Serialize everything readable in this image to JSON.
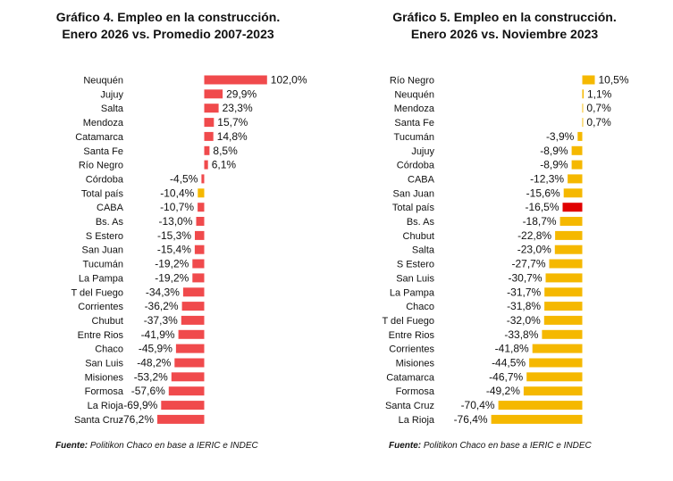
{
  "colors": {
    "red": "#F04A4C",
    "yellow": "#F5B800",
    "highlight_red": "#E00000"
  },
  "chart_data": [
    {
      "type": "bar",
      "orientation": "horizontal",
      "title_line1": "Gráfico 4. Empleo en la construcción.",
      "title_line2": "Enero 2026 vs. Promedio 2007-2023",
      "source_bold": "Fuente:",
      "source_text": " Politikon Chaco en base a IERIC e INDEC",
      "unit": "%",
      "bar_color": "#F04A4C",
      "highlight": {
        "Total país": "#F5B800"
      },
      "categories": [
        "Neuquén",
        "Jujuy",
        "Salta",
        "Mendoza",
        "Catamarca",
        "Santa Fe",
        "Río Negro",
        "Córdoba",
        "Total país",
        "CABA",
        "Bs. As",
        "S Estero",
        "San Juan",
        "Tucumán",
        "La Pampa",
        "T del Fuego",
        "Corrientes",
        "Chubut",
        "Entre Rios",
        "Chaco",
        "San Luis",
        "Misiones",
        "Formosa",
        "La Rioja",
        "Santa Cruz"
      ],
      "values": [
        102.0,
        29.9,
        23.3,
        15.7,
        14.8,
        8.5,
        6.1,
        -4.5,
        -10.4,
        -10.7,
        -13.0,
        -15.3,
        -15.4,
        -19.2,
        -19.2,
        -34.3,
        -36.2,
        -37.3,
        -41.9,
        -45.9,
        -48.2,
        -53.2,
        -57.6,
        -69.9,
        -76.2
      ],
      "value_labels": [
        "102,0%",
        "29,9%",
        "23,3%",
        "15,7%",
        "14,8%",
        "8,5%",
        "6,1%",
        "-4,5%",
        "-10,4%",
        "-10,7%",
        "-13,0%",
        "-15,3%",
        "-15,4%",
        "-19,2%",
        "-19,2%",
        "-34,3%",
        "-36,2%",
        "-37,3%",
        "-41,9%",
        "-45,9%",
        "-48,2%",
        "-53,2%",
        "-57,6%",
        "-69,9%",
        "-76,2%"
      ]
    },
    {
      "type": "bar",
      "orientation": "horizontal",
      "title_line1": "Gráfico 5. Empleo en la construcción.",
      "title_line2": "Enero 2026 vs. Noviembre 2023",
      "source_bold": "Fuente:",
      "source_text": " Politikon Chaco en base a IERIC e INDEC",
      "unit": "%",
      "bar_color": "#F5B800",
      "highlight": {
        "Total país": "#E00000"
      },
      "categories": [
        "Río Negro",
        "Neuquén",
        "Mendoza",
        "Santa Fe",
        "Tucumán",
        "Jujuy",
        "Córdoba",
        "CABA",
        "San Juan",
        "Total país",
        "Bs. As",
        "Chubut",
        "Salta",
        "S Estero",
        "San Luis",
        "La Pampa",
        "Chaco",
        "T del Fuego",
        "Entre Rios",
        "Corrientes",
        "Misiones",
        "Catamarca",
        "Formosa",
        "Santa Cruz",
        "La Rioja"
      ],
      "values": [
        10.5,
        1.1,
        0.7,
        0.7,
        -3.9,
        -8.9,
        -8.9,
        -12.3,
        -15.6,
        -16.5,
        -18.7,
        -22.8,
        -23.0,
        -27.7,
        -30.7,
        -31.7,
        -31.8,
        -32.0,
        -33.8,
        -41.8,
        -44.5,
        -46.7,
        -49.2,
        -70.4,
        -76.4
      ],
      "value_labels": [
        "10,5%",
        "1,1%",
        "0,7%",
        "0,7%",
        "-3,9%",
        "-8,9%",
        "-8,9%",
        "-12,3%",
        "-15,6%",
        "-16,5%",
        "-18,7%",
        "-22,8%",
        "-23,0%",
        "-27,7%",
        "-30,7%",
        "-31,7%",
        "-31,8%",
        "-32,0%",
        "-33,8%",
        "-41,8%",
        "-44,5%",
        "-46,7%",
        "-49,2%",
        "-70,4%",
        "-76,4%"
      ]
    }
  ]
}
